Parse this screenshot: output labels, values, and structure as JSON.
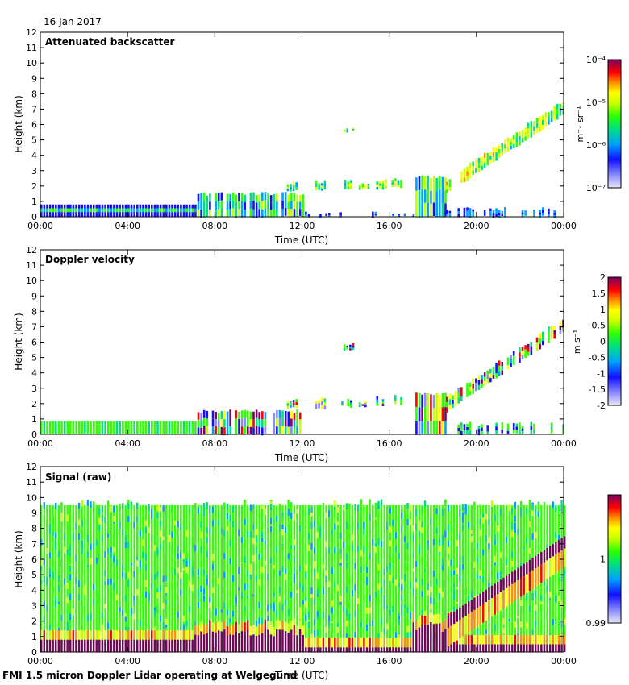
{
  "date": "16 Jan 2017",
  "footer": "FMI 1.5 micron Doppler Lidar operating at Welgegund",
  "chart_data": [
    {
      "type": "heatmap",
      "title": "Attenuated backscatter",
      "xlabel": "Time (UTC)",
      "ylabel": "Height (km)",
      "x_ticks": [
        "00:00",
        "04:00",
        "08:00",
        "12:00",
        "16:00",
        "20:00",
        "00:00"
      ],
      "xlim": [
        0,
        24
      ],
      "ylim": [
        0,
        12
      ],
      "y_ticks": [
        0,
        1,
        2,
        3,
        4,
        5,
        6,
        7,
        8,
        9,
        10,
        11,
        12
      ],
      "colorbar": {
        "label": "m⁻¹ sr⁻¹",
        "scale": "log",
        "range": [
          1e-07,
          0.0001
        ],
        "tick_labels": [
          "10⁻⁴",
          "10⁻⁵",
          "10⁻⁶",
          "10⁻⁷"
        ]
      },
      "features": [
        {
          "name": "boundary layer",
          "t": [
            0,
            7.2
          ],
          "height_km": [
            0,
            0.8
          ]
        },
        {
          "name": "deepening layer",
          "t": [
            7.2,
            12
          ],
          "height_km": [
            0,
            1.5
          ]
        },
        {
          "name": "cloud layer",
          "t": [
            11.5,
            17.5
          ],
          "height_km": [
            1.7,
            2.3
          ]
        },
        {
          "name": "rising cloud",
          "t": [
            17.3,
            24
          ],
          "height_km": [
            1,
            8
          ]
        }
      ]
    },
    {
      "type": "heatmap",
      "title": "Doppler velocity",
      "xlabel": "Time (UTC)",
      "ylabel": "Height (km)",
      "x_ticks": [
        "00:00",
        "04:00",
        "08:00",
        "12:00",
        "16:00",
        "20:00",
        "00:00"
      ],
      "xlim": [
        0,
        24
      ],
      "ylim": [
        0,
        12
      ],
      "y_ticks": [
        0,
        1,
        2,
        3,
        4,
        5,
        6,
        7,
        8,
        9,
        10,
        11,
        12
      ],
      "colorbar": {
        "label": "m s⁻¹",
        "scale": "linear",
        "range": [
          -2,
          2
        ],
        "tick_labels": [
          "2",
          "1.5",
          "1",
          "0.5",
          "0",
          "-0.5",
          "-1",
          "-1.5",
          "-2"
        ]
      }
    },
    {
      "type": "heatmap",
      "title": "Signal (raw)",
      "xlabel": "Time (UTC)",
      "ylabel": "Height (km)",
      "x_ticks": [
        "00:00",
        "04:00",
        "08:00",
        "12:00",
        "16:00",
        "20:00",
        "00:00"
      ],
      "xlim": [
        0,
        24
      ],
      "ylim": [
        0,
        12
      ],
      "y_ticks": [
        0,
        1,
        2,
        3,
        4,
        5,
        6,
        7,
        8,
        9,
        10,
        11,
        12
      ],
      "data_top_km": 9.5,
      "colorbar": {
        "label": "",
        "scale": "linear",
        "range": [
          0.99,
          1.01
        ],
        "tick_labels": [
          "1",
          "0.99"
        ]
      }
    }
  ]
}
